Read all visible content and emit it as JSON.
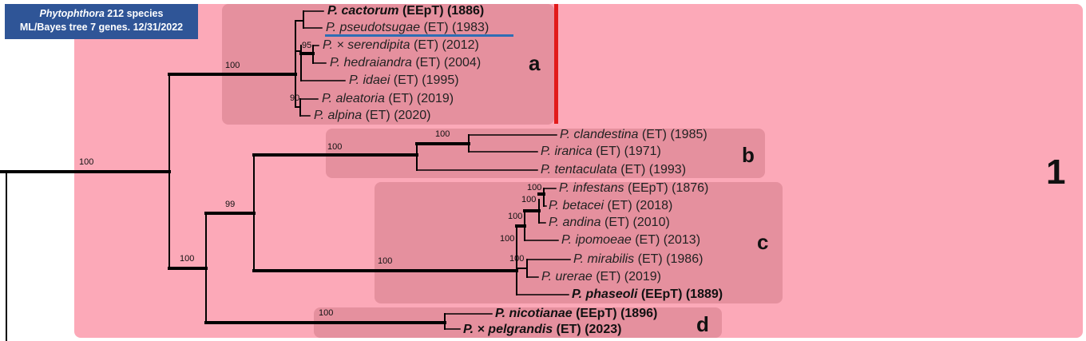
{
  "header": {
    "genus": "Phytophthora",
    "line1_rest": " 212 species",
    "line2": "ML/Bayes tree 7 genes. 12/31/2022"
  },
  "major_clade_label": "1",
  "subclade_labels": {
    "a": "a",
    "b": "b",
    "c": "c",
    "d": "d"
  },
  "colors": {
    "clade1": "#fca9b8",
    "subclade": "#e5909e",
    "marker": "#e21a1a",
    "header_bg": "#2f5597",
    "underline": "#2e6eb4"
  },
  "tips": [
    {
      "id": "cactorum",
      "species": "P. cactorum",
      "rest": " (EEpT) (1886)",
      "bold": true
    },
    {
      "id": "pseudotsugae",
      "species": "P. pseudotsugae",
      "rest": " (ET) (1983)",
      "bold": false
    },
    {
      "id": "serendipita",
      "species": "P. × serendipita",
      "rest": " (ET) (2012)",
      "bold": false
    },
    {
      "id": "hedraiandra",
      "species": "P. hedraiandra",
      "rest": " (ET) (2004)",
      "bold": false
    },
    {
      "id": "idaei",
      "species": "P. idaei",
      "rest": " (ET) (1995)",
      "bold": false
    },
    {
      "id": "aleatoria",
      "species": "P. aleatoria",
      "rest": " (ET) (2019)",
      "bold": false
    },
    {
      "id": "alpina",
      "species": "P. alpina",
      "rest": " (ET) (2020)",
      "bold": false
    },
    {
      "id": "clandestina",
      "species": "P. clandestina",
      "rest": " (ET) (1985)",
      "bold": false
    },
    {
      "id": "iranica",
      "species": "P. iranica",
      "rest": " (ET) (1971)",
      "bold": false
    },
    {
      "id": "tentaculata",
      "species": "P. tentaculata",
      "rest": " (ET) (1993)",
      "bold": false
    },
    {
      "id": "infestans",
      "species": "P. infestans",
      "rest": " (EEpT) (1876)",
      "bold": false
    },
    {
      "id": "betacei",
      "species": "P. betacei",
      "rest": " (ET) (2018)",
      "bold": false
    },
    {
      "id": "andina",
      "species": "P. andina",
      "rest": " (ET) (2010)",
      "bold": false
    },
    {
      "id": "ipomoeae",
      "species": "P. ipomoeae",
      "rest": " (ET) (2013)",
      "bold": false
    },
    {
      "id": "mirabilis",
      "species": "P. mirabilis",
      "rest": " (ET) (1986)",
      "bold": false
    },
    {
      "id": "urerae",
      "species": "P. urerae",
      "rest": " (ET) (2019)",
      "bold": false
    },
    {
      "id": "phaseoli",
      "species": "P. phaseoli",
      "rest": " (EEpT) (1889)",
      "bold": true
    },
    {
      "id": "nicotianae",
      "species": "P. nicotianae",
      "rest": " (EEpT) (1896)",
      "bold": true
    },
    {
      "id": "pelgrandis",
      "species": "P. × pelgrandis",
      "rest": " (ET) (2023)",
      "bold": true
    }
  ],
  "supports": {
    "root": "100",
    "a": "100",
    "a_95": "95",
    "a_90": "90",
    "bcd": "100",
    "bc": "99",
    "b": "100",
    "b_inner": "100",
    "c": "100",
    "c_100a": "100",
    "c_100b": "100",
    "c_100c": "100",
    "c_100d": "100",
    "c_100e": "100",
    "d": "100"
  }
}
